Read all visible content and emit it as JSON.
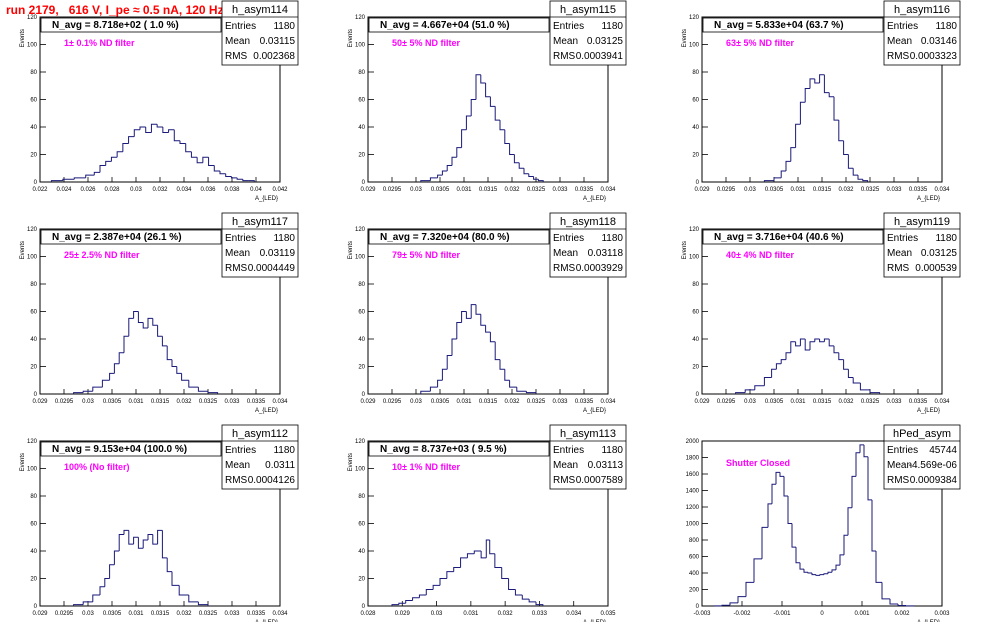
{
  "title": "run 2179,   616 V, I_pe ≈ 0.5 nA, 120 Hz",
  "stats_labels": {
    "entries": "Entries",
    "mean": "Mean",
    "rms": "RMS"
  },
  "colors": {
    "histogram": "#1a1a7a",
    "title": "#ff0000",
    "annotation": "#ff00ff",
    "text": "#000000"
  },
  "chart_data": [
    {
      "type": "bar",
      "hist_name": "h_asym114",
      "navg_label": "N_avg = 8.718e+02 ( 1.0 %)",
      "annotation": "1± 0.1% ND filter",
      "stats": {
        "entries": "1180",
        "mean": "0.03115",
        "rms": "0.002368"
      },
      "ylabel": "Events",
      "xlabel": "A_{LED}",
      "xlim": [
        0.021,
        0.042
      ],
      "ylim": [
        0,
        120
      ],
      "xticks": [
        "0.022",
        "0.024",
        "0.026",
        "0.028",
        "0.03",
        "0.032",
        "0.034",
        "0.036",
        "0.038",
        "0.04",
        "0.042"
      ],
      "yticks": [
        "0",
        "20",
        "40",
        "60",
        "80",
        "100",
        "120"
      ],
      "x": [
        0.0225,
        0.0235,
        0.0245,
        0.0255,
        0.026,
        0.0265,
        0.027,
        0.0275,
        0.028,
        0.0285,
        0.029,
        0.0295,
        0.03,
        0.0305,
        0.031,
        0.0315,
        0.032,
        0.0325,
        0.033,
        0.0335,
        0.034,
        0.0345,
        0.035,
        0.0355,
        0.036,
        0.0365,
        0.037,
        0.0375,
        0.038,
        0.0385,
        0.039,
        0.0395
      ],
      "values": [
        1,
        2,
        3,
        5,
        7,
        12,
        15,
        18,
        22,
        28,
        33,
        38,
        40,
        36,
        42,
        40,
        36,
        38,
        30,
        28,
        22,
        18,
        14,
        18,
        12,
        8,
        6,
        4,
        3,
        2,
        1,
        1
      ]
    },
    {
      "type": "bar",
      "hist_name": "h_asym115",
      "navg_label": "N_avg = 4.667e+04 (51.0 %)",
      "annotation": "50± 5% ND filter",
      "stats": {
        "entries": "1180",
        "mean": "0.03125",
        "rms": "0.0003941"
      },
      "ylabel": "Events",
      "xlabel": "A_{LED}",
      "xlim": [
        0.029,
        0.034
      ],
      "ylim": [
        0,
        120
      ],
      "xticks": [
        "0.029",
        "0.0295",
        "0.03",
        "0.0305",
        "0.031",
        "0.0315",
        "0.032",
        "0.0325",
        "0.033",
        "0.0335",
        "0.034"
      ],
      "yticks": [
        "0",
        "20",
        "40",
        "60",
        "80",
        "100",
        "120"
      ],
      "x": [
        0.0302,
        0.0304,
        0.0305,
        0.0306,
        0.0307,
        0.0308,
        0.0309,
        0.031,
        0.0311,
        0.0312,
        0.0313,
        0.0314,
        0.0315,
        0.0316,
        0.0317,
        0.0318,
        0.0319,
        0.032,
        0.0321,
        0.0322,
        0.0323,
        0.0324,
        0.0325,
        0.0326
      ],
      "values": [
        1,
        3,
        5,
        8,
        12,
        18,
        25,
        38,
        48,
        60,
        78,
        72,
        62,
        55,
        45,
        38,
        28,
        20,
        14,
        10,
        6,
        4,
        2,
        1
      ]
    },
    {
      "type": "bar",
      "hist_name": "h_asym116",
      "navg_label": "N_avg = 5.833e+04 (63.7 %)",
      "annotation": "63± 5% ND filter",
      "stats": {
        "entries": "1180",
        "mean": "0.03146",
        "rms": "0.0003323"
      },
      "ylabel": "Events",
      "xlabel": "A_{LED}",
      "xlim": [
        0.029,
        0.034
      ],
      "ylim": [
        0,
        120
      ],
      "xticks": [
        "0.029",
        "0.0295",
        "0.03",
        "0.0305",
        "0.031",
        "0.0315",
        "0.032",
        "0.0325",
        "0.033",
        "0.0335",
        "0.034"
      ],
      "yticks": [
        "0",
        "20",
        "40",
        "60",
        "80",
        "100",
        "120"
      ],
      "x": [
        0.0304,
        0.0306,
        0.0307,
        0.0308,
        0.0309,
        0.031,
        0.0311,
        0.0312,
        0.0313,
        0.0314,
        0.0315,
        0.0316,
        0.0317,
        0.0318,
        0.0319,
        0.032,
        0.0321,
        0.0322,
        0.0323,
        0.0324
      ],
      "values": [
        1,
        3,
        8,
        15,
        25,
        42,
        58,
        68,
        75,
        72,
        78,
        65,
        62,
        45,
        30,
        20,
        10,
        5,
        2,
        1
      ]
    },
    {
      "type": "bar",
      "hist_name": "h_asym117",
      "navg_label": "N_avg = 2.387e+04 (26.1 %)",
      "annotation": "25± 2.5% ND filter",
      "stats": {
        "entries": "1180",
        "mean": "0.03119",
        "rms": "0.0004449"
      },
      "ylabel": "Events",
      "xlabel": "A_{LED}",
      "xlim": [
        0.029,
        0.034
      ],
      "ylim": [
        0,
        120
      ],
      "xticks": [
        "0.029",
        "0.0295",
        "0.03",
        "0.0305",
        "0.031",
        "0.0315",
        "0.032",
        "0.0325",
        "0.033",
        "0.0335",
        "0.034"
      ],
      "yticks": [
        "0",
        "20",
        "40",
        "60",
        "80",
        "100",
        "120"
      ],
      "x": [
        0.0298,
        0.03,
        0.0302,
        0.0304,
        0.0305,
        0.0306,
        0.0307,
        0.0308,
        0.0309,
        0.031,
        0.0311,
        0.0312,
        0.0313,
        0.0314,
        0.0315,
        0.0316,
        0.0317,
        0.0318,
        0.0319,
        0.032,
        0.0322,
        0.0324,
        0.0326
      ],
      "values": [
        1,
        2,
        5,
        10,
        15,
        22,
        30,
        42,
        55,
        60,
        52,
        48,
        55,
        50,
        42,
        35,
        25,
        20,
        15,
        10,
        5,
        2,
        1
      ]
    },
    {
      "type": "bar",
      "hist_name": "h_asym118",
      "navg_label": "N_avg = 7.320e+04 (80.0 %)",
      "annotation": "79± 5% ND filter",
      "stats": {
        "entries": "1180",
        "mean": "0.03118",
        "rms": "0.0003929"
      },
      "ylabel": "Events",
      "xlabel": "A_{LED}",
      "xlim": [
        0.029,
        0.034
      ],
      "ylim": [
        0,
        120
      ],
      "xticks": [
        "0.029",
        "0.0295",
        "0.03",
        "0.0305",
        "0.031",
        "0.0315",
        "0.032",
        "0.0325",
        "0.033",
        "0.0335",
        "0.034"
      ],
      "yticks": [
        "0",
        "20",
        "40",
        "60",
        "80",
        "100",
        "120"
      ],
      "x": [
        0.0302,
        0.0304,
        0.0305,
        0.0306,
        0.0307,
        0.0308,
        0.0309,
        0.031,
        0.0311,
        0.0312,
        0.0313,
        0.0314,
        0.0315,
        0.0316,
        0.0317,
        0.0318,
        0.0319,
        0.032,
        0.0322,
        0.0324
      ],
      "values": [
        2,
        5,
        10,
        18,
        28,
        40,
        52,
        60,
        55,
        65,
        58,
        50,
        45,
        38,
        25,
        18,
        10,
        5,
        2,
        1
      ]
    },
    {
      "type": "bar",
      "hist_name": "h_asym119",
      "navg_label": "N_avg = 3.716e+04 (40.6 %)",
      "annotation": "40± 4% ND filter",
      "stats": {
        "entries": "1180",
        "mean": "0.03125",
        "rms": "0.000539"
      },
      "ylabel": "Events",
      "xlabel": "A_{LED}",
      "xlim": [
        0.029,
        0.034
      ],
      "ylim": [
        0,
        120
      ],
      "xticks": [
        "0.029",
        "0.0295",
        "0.03",
        "0.0305",
        "0.031",
        "0.0315",
        "0.032",
        "0.0325",
        "0.033",
        "0.0335",
        "0.034"
      ],
      "yticks": [
        "0",
        "20",
        "40",
        "60",
        "80",
        "100",
        "120"
      ],
      "x": [
        0.0298,
        0.03,
        0.0302,
        0.0304,
        0.0305,
        0.0306,
        0.0307,
        0.0308,
        0.0309,
        0.031,
        0.0311,
        0.0312,
        0.0313,
        0.0314,
        0.0315,
        0.0316,
        0.0317,
        0.0318,
        0.0319,
        0.032,
        0.0321,
        0.0322,
        0.0324,
        0.0326
      ],
      "values": [
        1,
        3,
        6,
        12,
        18,
        22,
        25,
        30,
        38,
        35,
        40,
        32,
        38,
        40,
        38,
        40,
        35,
        30,
        25,
        18,
        12,
        8,
        3,
        1
      ]
    },
    {
      "type": "bar",
      "hist_name": "h_asym112",
      "navg_label": "N_avg = 9.153e+04 (100.0 %)",
      "annotation": "100% (No filter)",
      "stats": {
        "entries": "1180",
        "mean": "0.0311",
        "rms": "0.0004126"
      },
      "ylabel": "Events",
      "xlabel": "A_{LED}",
      "xlim": [
        0.029,
        0.034
      ],
      "ylim": [
        0,
        120
      ],
      "xticks": [
        "0.029",
        "0.0295",
        "0.03",
        "0.0305",
        "0.031",
        "0.0315",
        "0.032",
        "0.0325",
        "0.033",
        "0.0335",
        "0.034"
      ],
      "yticks": [
        "0",
        "20",
        "40",
        "60",
        "80",
        "100",
        "120"
      ],
      "x": [
        0.0298,
        0.03,
        0.0302,
        0.0303,
        0.0304,
        0.0305,
        0.0306,
        0.0307,
        0.0308,
        0.0309,
        0.031,
        0.0311,
        0.0312,
        0.0313,
        0.0314,
        0.0315,
        0.0316,
        0.0317,
        0.0318,
        0.032,
        0.0322,
        0.0324
      ],
      "values": [
        1,
        3,
        8,
        14,
        20,
        30,
        40,
        52,
        55,
        45,
        50,
        42,
        48,
        52,
        45,
        55,
        35,
        25,
        15,
        8,
        3,
        1
      ]
    },
    {
      "type": "bar",
      "hist_name": "h_asym113",
      "navg_label": "N_avg = 8.737e+03 ( 9.5 %)",
      "annotation": "10± 1% ND filter",
      "stats": {
        "entries": "1180",
        "mean": "0.03113",
        "rms": "0.0007589"
      },
      "ylabel": "Events",
      "xlabel": "A_{LED}",
      "xlim": [
        0.028,
        0.035
      ],
      "ylim": [
        0,
        120
      ],
      "xticks": [
        "0.028",
        "0.029",
        "0.03",
        "0.031",
        "0.032",
        "0.033",
        "0.034",
        "0.035"
      ],
      "yticks": [
        "0",
        "20",
        "40",
        "60",
        "80",
        "100",
        "120"
      ],
      "x": [
        0.0288,
        0.029,
        0.0292,
        0.0294,
        0.0296,
        0.0298,
        0.03,
        0.0302,
        0.0304,
        0.0306,
        0.0308,
        0.031,
        0.0312,
        0.0314,
        0.0315,
        0.0316,
        0.0318,
        0.032,
        0.0322,
        0.0324,
        0.0326,
        0.0328,
        0.033
      ],
      "values": [
        1,
        2,
        4,
        6,
        8,
        12,
        15,
        20,
        25,
        28,
        35,
        38,
        40,
        35,
        48,
        38,
        28,
        20,
        12,
        8,
        5,
        3,
        1
      ]
    },
    {
      "type": "bar",
      "hist_name": "hPed_asym",
      "navg_label": "",
      "annotation": "Shutter Closed",
      "stats": {
        "entries": "45744",
        "mean": "-4.569e-06",
        "rms": "0.0009384"
      },
      "ylabel": "",
      "xlabel": "A_{LED}",
      "xlim": [
        -0.003,
        0.003
      ],
      "ylim": [
        0,
        2100
      ],
      "xticks": [
        "-0.003",
        "-0.002",
        "-0.001",
        "0",
        "0.001",
        "0.002",
        "0.003"
      ],
      "yticks": [
        "0",
        "200",
        "400",
        "600",
        "800",
        "1000",
        "1200",
        "1400",
        "1600",
        "1800",
        "2000"
      ],
      "x": [
        -0.0026,
        -0.0024,
        -0.0022,
        -0.002,
        -0.0018,
        -0.0016,
        -0.0014,
        -0.0013,
        -0.0012,
        -0.0011,
        -0.001,
        -0.0009,
        -0.0008,
        -0.0007,
        -0.0006,
        -0.0005,
        -0.0004,
        -0.0003,
        -0.0002,
        -0.0001,
        0,
        0.0001,
        0.0002,
        0.0003,
        0.0004,
        0.0005,
        0.0006,
        0.0007,
        0.0008,
        0.0009,
        0.001,
        0.0011,
        0.0012,
        0.0013,
        0.0014,
        0.0016,
        0.0018,
        0.002,
        0.0022
      ],
      "values": [
        2,
        10,
        40,
        120,
        300,
        600,
        1000,
        1300,
        1550,
        1700,
        1650,
        1400,
        1050,
        750,
        550,
        470,
        430,
        420,
        400,
        390,
        400,
        410,
        430,
        460,
        520,
        650,
        900,
        1250,
        1650,
        1950,
        2050,
        1900,
        1350,
        700,
        300,
        90,
        25,
        6,
        2
      ]
    }
  ]
}
